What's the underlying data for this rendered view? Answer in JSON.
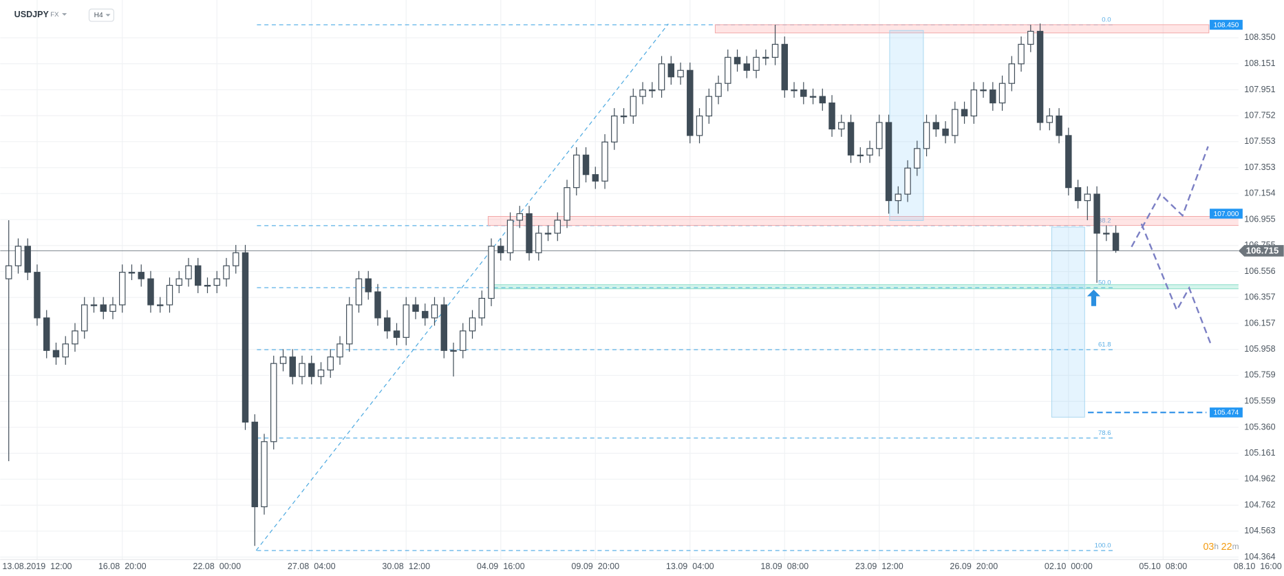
{
  "header": {
    "symbol": "USDJPY",
    "market": "FX",
    "timeframe": "H4"
  },
  "chart_data": {
    "type": "candlestick",
    "x": [
      -6,
      -4,
      -2,
      0,
      2,
      4,
      6,
      8,
      10,
      12,
      14,
      16,
      18,
      20,
      22,
      24,
      26,
      28,
      30,
      32,
      34,
      36,
      38,
      40,
      42,
      44,
      46,
      48,
      50,
      52,
      54,
      56,
      58,
      60,
      62,
      64,
      66,
      68,
      70,
      72,
      74,
      76,
      78,
      80,
      82,
      84,
      86,
      88,
      90,
      92,
      94,
      96,
      98,
      100,
      102,
      104,
      106,
      108,
      110,
      112,
      114,
      116,
      118,
      120,
      122,
      124,
      126,
      128,
      130,
      132,
      134,
      136,
      138,
      140,
      142,
      144,
      146,
      148,
      150,
      152,
      154,
      156,
      158,
      160,
      162,
      164,
      166,
      168,
      170,
      172,
      174,
      176,
      178,
      180,
      182,
      184,
      186,
      188,
      190,
      192,
      194,
      196,
      198,
      200,
      202,
      204,
      206,
      208,
      210,
      212,
      214,
      216,
      218,
      220,
      222,
      224,
      226,
      228
    ],
    "open": [
      106.5,
      106.6,
      106.75,
      106.55,
      106.2,
      105.95,
      105.9,
      106.0,
      106.1,
      106.3,
      106.3,
      106.25,
      106.3,
      106.55,
      106.55,
      106.5,
      106.3,
      106.3,
      106.45,
      106.5,
      106.6,
      106.45,
      106.45,
      106.5,
      106.6,
      106.7,
      105.4,
      104.75,
      105.25,
      105.85,
      105.9,
      105.75,
      105.85,
      105.75,
      105.8,
      105.9,
      106.0,
      106.3,
      106.5,
      106.4,
      106.2,
      106.1,
      106.05,
      106.3,
      106.25,
      106.2,
      106.3,
      105.95,
      105.95,
      106.1,
      106.2,
      106.35,
      106.75,
      106.7,
      106.95,
      107.0,
      106.7,
      106.85,
      106.85,
      106.95,
      107.2,
      107.45,
      107.3,
      107.25,
      107.55,
      107.75,
      107.75,
      107.9,
      107.95,
      107.95,
      108.15,
      108.05,
      108.1,
      107.6,
      107.75,
      107.9,
      108.0,
      108.2,
      108.15,
      108.1,
      108.2,
      108.2,
      108.3,
      107.95,
      107.95,
      107.9,
      107.9,
      107.85,
      107.65,
      107.7,
      107.45,
      107.45,
      107.5,
      107.7,
      107.1,
      107.15,
      107.35,
      107.5,
      107.7,
      107.65,
      107.6,
      107.8,
      107.75,
      107.95,
      107.95,
      107.85,
      108.0,
      108.15,
      108.3,
      108.4,
      107.7,
      107.75,
      107.6,
      107.2,
      107.1,
      107.15,
      106.85,
      106.85
    ],
    "high": [
      106.95,
      106.81,
      106.81,
      106.61,
      106.26,
      106.01,
      106.06,
      106.16,
      106.36,
      106.36,
      106.36,
      106.36,
      106.61,
      106.61,
      106.61,
      106.56,
      106.36,
      106.51,
      106.56,
      106.66,
      106.66,
      106.51,
      106.56,
      106.66,
      106.76,
      106.76,
      105.46,
      105.31,
      105.91,
      105.96,
      105.96,
      105.91,
      105.91,
      105.86,
      105.96,
      106.06,
      106.36,
      106.56,
      106.56,
      106.46,
      106.26,
      106.16,
      106.36,
      106.36,
      106.31,
      106.36,
      106.36,
      106.01,
      106.16,
      106.26,
      106.41,
      106.81,
      106.81,
      107.01,
      107.06,
      107.06,
      106.91,
      106.91,
      107.01,
      107.26,
      107.51,
      107.51,
      107.36,
      107.61,
      107.81,
      107.81,
      107.96,
      108.01,
      108.01,
      108.21,
      108.21,
      108.16,
      108.16,
      107.81,
      107.96,
      108.06,
      108.26,
      108.26,
      108.21,
      108.26,
      108.26,
      108.45,
      108.36,
      108.01,
      108.01,
      107.96,
      107.96,
      107.91,
      107.76,
      107.76,
      107.51,
      107.56,
      107.76,
      107.76,
      107.21,
      107.41,
      107.56,
      107.76,
      107.76,
      107.71,
      107.86,
      107.86,
      108.01,
      108.01,
      108.01,
      108.06,
      108.21,
      108.36,
      108.45,
      108.46,
      107.81,
      107.81,
      107.66,
      107.26,
      107.21,
      107.21,
      106.91,
      106.91
    ],
    "low": [
      105.1,
      106.54,
      106.49,
      106.14,
      105.89,
      105.84,
      105.84,
      105.94,
      106.04,
      106.24,
      106.19,
      106.19,
      106.24,
      106.49,
      106.44,
      106.24,
      106.24,
      106.24,
      106.39,
      106.44,
      106.39,
      106.39,
      106.39,
      106.44,
      106.54,
      105.34,
      104.45,
      104.69,
      105.19,
      105.79,
      105.69,
      105.69,
      105.69,
      105.69,
      105.74,
      105.84,
      105.94,
      106.24,
      106.34,
      106.14,
      106.04,
      105.99,
      105.99,
      106.19,
      106.14,
      106.14,
      105.89,
      105.75,
      105.89,
      106.04,
      106.14,
      106.29,
      106.64,
      106.64,
      106.89,
      106.64,
      106.64,
      106.79,
      106.79,
      106.89,
      107.14,
      107.24,
      107.19,
      107.19,
      107.49,
      107.69,
      107.69,
      107.84,
      107.89,
      107.89,
      107.99,
      107.99,
      107.54,
      107.54,
      107.69,
      107.84,
      107.94,
      108.09,
      108.04,
      108.04,
      108.14,
      108.14,
      107.89,
      107.89,
      107.84,
      107.84,
      107.79,
      107.59,
      107.59,
      107.39,
      107.39,
      107.39,
      107.44,
      107.0,
      107.0,
      107.09,
      107.29,
      107.44,
      107.59,
      107.54,
      107.54,
      107.69,
      107.69,
      107.89,
      107.79,
      107.79,
      107.94,
      108.09,
      108.24,
      107.64,
      107.64,
      107.54,
      107.14,
      107.04,
      106.95,
      106.47,
      106.79,
      106.7
    ],
    "close": [
      106.6,
      106.75,
      106.55,
      106.2,
      105.95,
      105.9,
      106.0,
      106.1,
      106.3,
      106.3,
      106.25,
      106.3,
      106.55,
      106.55,
      106.5,
      106.3,
      106.3,
      106.45,
      106.5,
      106.6,
      106.45,
      106.45,
      106.5,
      106.6,
      106.7,
      105.4,
      104.75,
      105.25,
      105.85,
      105.9,
      105.75,
      105.85,
      105.75,
      105.8,
      105.9,
      106.0,
      106.3,
      106.5,
      106.4,
      106.2,
      106.1,
      106.05,
      106.3,
      106.25,
      106.2,
      106.3,
      105.95,
      105.95,
      106.1,
      106.2,
      106.35,
      106.75,
      106.7,
      106.95,
      107.0,
      106.7,
      106.85,
      106.85,
      106.95,
      107.2,
      107.45,
      107.3,
      107.25,
      107.55,
      107.75,
      107.75,
      107.9,
      107.95,
      107.95,
      108.15,
      108.05,
      108.1,
      107.6,
      107.75,
      107.9,
      108.0,
      108.2,
      108.15,
      108.1,
      108.2,
      108.2,
      108.3,
      107.95,
      107.95,
      107.9,
      107.9,
      107.85,
      107.65,
      107.7,
      107.45,
      107.45,
      107.5,
      107.7,
      107.1,
      107.15,
      107.35,
      107.5,
      107.7,
      107.65,
      107.6,
      107.8,
      107.75,
      107.95,
      107.95,
      107.85,
      108.0,
      108.15,
      108.3,
      108.4,
      107.7,
      107.75,
      107.6,
      107.2,
      107.1,
      107.15,
      106.85,
      106.85,
      106.72
    ],
    "colors": {
      "up": "#ffffff",
      "down": "#3f4c57",
      "outline": "#3f4c57"
    },
    "xlim": [
      -7.8,
      263.5
    ],
    "xticks": [
      {
        "value": 0,
        "label": "13.08.2019  12:00"
      },
      {
        "value": 18,
        "label": "16.08  20:00"
      },
      {
        "value": 38,
        "label": "22.08  00:00"
      },
      {
        "value": 58,
        "label": "27.08  04:00"
      },
      {
        "value": 78,
        "label": "30.08  12:00"
      },
      {
        "value": 98,
        "label": "04.09  16:00"
      },
      {
        "value": 118,
        "label": "09.09  20:00"
      },
      {
        "value": 138,
        "label": "13.09  04:00"
      },
      {
        "value": 158,
        "label": "18.09  08:00"
      },
      {
        "value": 178,
        "label": "23.09  12:00"
      },
      {
        "value": 198,
        "label": "26.09  20:00"
      },
      {
        "value": 218,
        "label": "02.10  00:00"
      },
      {
        "value": 238,
        "label": "05.10  08:00"
      },
      {
        "value": 258,
        "label": "08.10  16:00"
      }
    ],
    "ylim": [
      104.345,
      108.577
    ],
    "yticks": [
      {
        "value": 108.35,
        "label": "108.350"
      },
      108.151,
      107.951,
      107.752,
      107.553,
      107.353,
      107.154,
      106.955,
      106.755,
      106.556,
      106.357,
      106.157,
      105.958,
      105.759,
      105.559,
      {
        "value": 105.36,
        "label": "105.360"
      },
      105.161,
      104.962,
      104.762,
      104.563,
      104.364
    ],
    "grid": true,
    "last_price": {
      "value": 106.715,
      "label": "106.715"
    },
    "levels": [
      {
        "value": 108.45,
        "label": "108.450"
      },
      {
        "value": 107,
        "label": "107.000"
      },
      {
        "value": 105.474,
        "label": "105.474"
      }
    ],
    "fibonacci": [
      {
        "ratio": "0.0",
        "price": 108.45
      },
      {
        "ratio": "38.2",
        "price": 106.908
      },
      {
        "ratio": "50.0",
        "price": 106.432
      },
      {
        "ratio": "61.8",
        "price": 105.956
      },
      {
        "ratio": "78.6",
        "price": 105.278
      },
      {
        "ratio": "100.0",
        "price": 104.414
      }
    ]
  },
  "timer": {
    "hours": "03",
    "h": "h",
    "minutes": "22",
    "m": "m"
  }
}
